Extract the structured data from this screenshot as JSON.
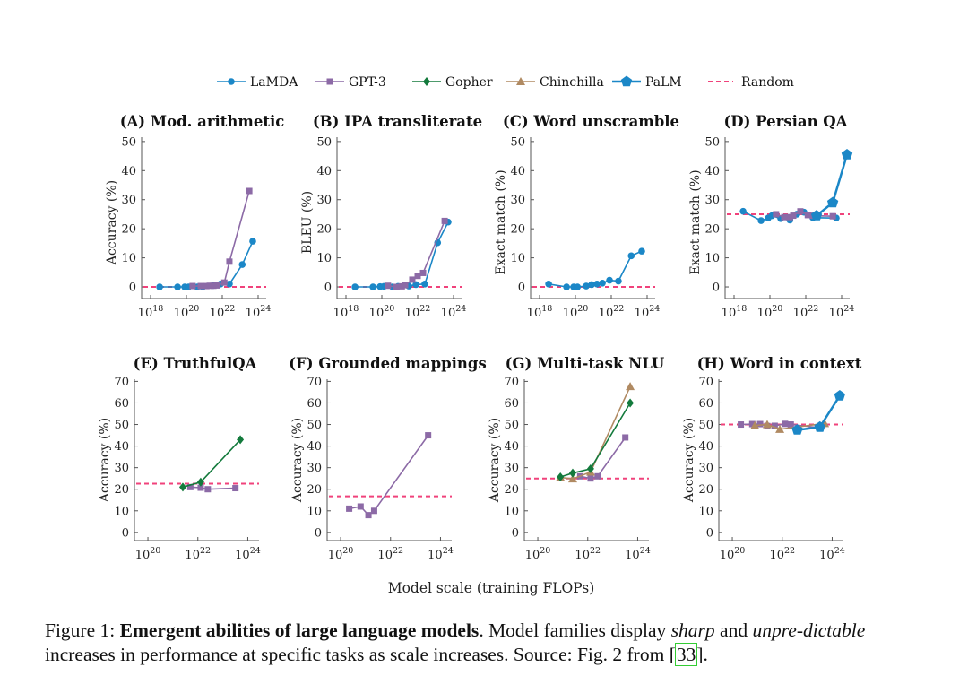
{
  "legend": [
    {
      "name": "LaMDA",
      "color": "#1b87c7",
      "marker": "circle"
    },
    {
      "name": "GPT-3",
      "color": "#8c6aa6",
      "marker": "square"
    },
    {
      "name": "Gopher",
      "color": "#137a3c",
      "marker": "diamond"
    },
    {
      "name": "Chinchilla",
      "color": "#b08a62",
      "marker": "triangle"
    },
    {
      "name": "PaLM",
      "color": "#1b87c7",
      "marker": "pentagon"
    },
    {
      "name": "Random",
      "color": "#f0427b",
      "marker": "dashed-line"
    }
  ],
  "xlabel": "Model scale (training FLOPs)",
  "caption": {
    "prefix": "Figure 1: ",
    "bold": "Emergent abilities of large language models",
    "t1": ". Model families display ",
    "i1": "sharp",
    "t2": " and ",
    "i2": "unpre-dictable",
    "t3": " increases in performance at specific tasks as scale increases. Source: Fig. 2 from ",
    "cite": "33",
    "t4": "."
  },
  "chart_data": [
    {
      "type": "line",
      "title": "(A) Mod. arithmetic",
      "ylabel": "Accuracy (%)",
      "xscale": "log",
      "xticks": [
        1e+18,
        1e+20,
        1e+22,
        1e+24
      ],
      "yticks": [
        0,
        10,
        20,
        30,
        40,
        50
      ],
      "ylim": [
        0,
        50
      ],
      "random": 0,
      "series": [
        {
          "name": "LaMDA",
          "x": [
            3.2e+18,
            3.2e+19,
            8e+19,
            1.3e+20,
            4e+20,
            8e+20,
            3.2e+21,
            8e+21,
            2.5e+22,
            1.3e+23,
            5e+23
          ],
          "y": [
            0,
            0,
            0,
            0,
            0,
            0,
            0.5,
            1,
            1,
            7.7,
            15.7
          ]
        },
        {
          "name": "GPT-3",
          "x": [
            2.2e+20,
            6.3e+20,
            1.3e+21,
            2e+21,
            3.2e+21,
            5e+21,
            1.3e+22,
            2.5e+22,
            3.2e+23
          ],
          "y": [
            0.3,
            0.3,
            0.3,
            0.4,
            0.4,
            0.5,
            1.5,
            8.7,
            33
          ]
        }
      ]
    },
    {
      "type": "line",
      "title": "(B) IPA transliterate",
      "ylabel": "BLEU (%)",
      "xscale": "log",
      "xticks": [
        1e+18,
        1e+20,
        1e+22,
        1e+24
      ],
      "yticks": [
        0,
        10,
        20,
        30,
        40,
        50
      ],
      "ylim": [
        0,
        50
      ],
      "random": 0,
      "series": [
        {
          "name": "LaMDA",
          "x": [
            3.2e+18,
            3.2e+19,
            8e+19,
            1.3e+20,
            4e+20,
            8e+20,
            3.2e+21,
            8e+21,
            2.5e+22,
            1.3e+23,
            5e+23
          ],
          "y": [
            0,
            0,
            0.1,
            0.2,
            0,
            0.2,
            0.3,
            0.8,
            1,
            15.2,
            22.3
          ]
        },
        {
          "name": "GPT-3",
          "x": [
            2.2e+20,
            6.3e+20,
            1.3e+21,
            2e+21,
            5e+21,
            1e+22,
            2e+22,
            3.2e+23
          ],
          "y": [
            0.4,
            0,
            0.2,
            0.6,
            2.5,
            3.8,
            4.8,
            22.7
          ]
        }
      ]
    },
    {
      "type": "line",
      "title": "(C) Word unscramble",
      "ylabel": "Exact match (%)",
      "xscale": "log",
      "xticks": [
        1e+18,
        1e+20,
        1e+22,
        1e+24
      ],
      "yticks": [
        0,
        10,
        20,
        30,
        40,
        50
      ],
      "ylim": [
        0,
        50
      ],
      "random": 0,
      "series": [
        {
          "name": "LaMDA",
          "x": [
            3.2e+18,
            3.2e+19,
            8e+19,
            1.3e+20,
            4e+20,
            8e+20,
            1.6e+21,
            3.2e+21,
            8e+21,
            2.5e+22,
            1.3e+23,
            5e+23
          ],
          "y": [
            1,
            0,
            0,
            0,
            0.3,
            0.8,
            1,
            1.3,
            2.3,
            2,
            10.7,
            12.3
          ]
        }
      ]
    },
    {
      "type": "line",
      "title": "(D) Persian QA",
      "ylabel": "Exact match (%)",
      "xscale": "log",
      "xticks": [
        1e+18,
        1e+20,
        1e+22,
        1e+24
      ],
      "yticks": [
        0,
        10,
        20,
        30,
        40,
        50
      ],
      "ylim": [
        0,
        50
      ],
      "random": 25,
      "series": [
        {
          "name": "LaMDA",
          "x": [
            3.2e+18,
            3.2e+19,
            8e+19,
            1.3e+20,
            4e+20,
            1.3e+21,
            3.2e+21,
            8e+21,
            2.5e+22,
            5e+23
          ],
          "y": [
            26,
            22.8,
            23.7,
            24.5,
            23.5,
            23,
            25,
            25.7,
            23.8,
            23.7
          ]
        },
        {
          "name": "GPT-3",
          "x": [
            2.2e+20,
            6.3e+20,
            1.3e+21,
            2e+21,
            5e+21,
            1.3e+22,
            2.5e+22,
            3.2e+23
          ],
          "y": [
            25,
            24,
            24,
            24.5,
            26,
            24.7,
            24.5,
            24.3
          ]
        },
        {
          "name": "PaLM",
          "x": [
            4e+22,
            3.2e+23,
            2e+24
          ],
          "y": [
            24.5,
            29,
            45.5
          ]
        }
      ]
    },
    {
      "type": "line",
      "title": "(E) TruthfulQA",
      "ylabel": "Accuracy (%)",
      "xscale": "log",
      "xticks": [
        1e+20,
        1e+22,
        1e+24
      ],
      "yticks": [
        0,
        10,
        20,
        30,
        40,
        50,
        60,
        70
      ],
      "ylim": [
        0,
        70
      ],
      "random": 22.6,
      "series": [
        {
          "name": "GPT-3",
          "x": [
            5e+21,
            1.3e+22,
            2.5e+22,
            3.2e+23
          ],
          "y": [
            21,
            20.7,
            20,
            20.5
          ]
        },
        {
          "name": "Gopher",
          "x": [
            2.5e+21,
            1.3e+22,
            5e+23
          ],
          "y": [
            21,
            23.3,
            43
          ]
        }
      ]
    },
    {
      "type": "line",
      "title": "(F) Grounded mappings",
      "ylabel": "Accuracy (%)",
      "xscale": "log",
      "xticks": [
        1e+20,
        1e+22,
        1e+24
      ],
      "yticks": [
        0,
        10,
        20,
        30,
        40,
        50,
        60,
        70
      ],
      "ylim": [
        0,
        70
      ],
      "random": 16.7,
      "series": [
        {
          "name": "GPT-3",
          "x": [
            2.2e+20,
            6.3e+20,
            1.3e+21,
            2.2e+21,
            3.2e+23
          ],
          "y": [
            11,
            12,
            8,
            10,
            45
          ]
        }
      ]
    },
    {
      "type": "line",
      "title": "(G) Multi-task NLU",
      "ylabel": "Accuracy (%)",
      "xscale": "log",
      "xticks": [
        1e+20,
        1e+22,
        1e+24
      ],
      "yticks": [
        0,
        10,
        20,
        30,
        40,
        50,
        60,
        70
      ],
      "ylim": [
        0,
        70
      ],
      "random": 25,
      "series": [
        {
          "name": "GPT-3",
          "x": [
            5e+21,
            1.3e+22,
            2.5e+22,
            3.2e+23
          ],
          "y": [
            26,
            25,
            26,
            44
          ]
        },
        {
          "name": "Chinchilla",
          "x": [
            8e+20,
            2.5e+21,
            1.3e+22,
            5e+23
          ],
          "y": [
            25.5,
            24.8,
            28,
            67.6
          ]
        },
        {
          "name": "Gopher",
          "x": [
            8e+20,
            2.5e+21,
            1.3e+22,
            5e+23
          ],
          "y": [
            25.7,
            27.5,
            29.5,
            60
          ]
        }
      ]
    },
    {
      "type": "line",
      "title": "(H) Word in context",
      "ylabel": "Accuracy (%)",
      "xscale": "log",
      "xticks": [
        1e+20,
        1e+22,
        1e+24
      ],
      "yticks": [
        0,
        10,
        20,
        30,
        40,
        50,
        60,
        70
      ],
      "ylim": [
        0,
        70
      ],
      "random": 50,
      "series": [
        {
          "name": "GPT-3",
          "x": [
            2.2e+20,
            6.3e+20,
            1.3e+21,
            2.5e+21,
            5e+21,
            1.3e+22,
            2.2e+22,
            3.2e+23
          ],
          "y": [
            50,
            50.2,
            50.2,
            49.3,
            49.4,
            50.3,
            50,
            48.5
          ]
        },
        {
          "name": "Chinchilla",
          "x": [
            8e+20,
            2.5e+21,
            8e+21,
            5e+23
          ],
          "y": [
            49.5,
            50,
            47.8,
            50.5
          ]
        },
        {
          "name": "PaLM",
          "x": [
            4e+22,
            3.2e+23,
            2e+24
          ],
          "y": [
            47.5,
            48.8,
            63.3
          ]
        }
      ]
    }
  ]
}
